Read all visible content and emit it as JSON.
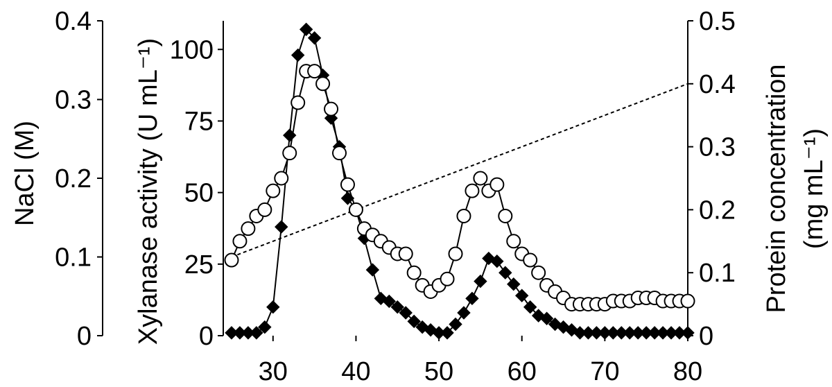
{
  "chart_data": {
    "type": "line",
    "xlabel": "",
    "xlim": [
      24,
      80
    ],
    "xticks": [
      30,
      40,
      50,
      60,
      70,
      80
    ],
    "axes": {
      "nacl": {
        "label": "NaCl (M)",
        "range": [
          0,
          0.4
        ],
        "ticks": [
          0,
          0.1,
          0.2,
          0.3,
          0.4
        ],
        "tick_labels": [
          "0",
          "0.1",
          "0.2",
          "0.3",
          "0.4"
        ]
      },
      "xylanase": {
        "label": "Xylanase activity (U mL⁻¹)",
        "range": [
          0,
          110
        ],
        "ticks": [
          0,
          25,
          50,
          75,
          100
        ],
        "tick_labels": [
          "0",
          "25",
          "50",
          "75",
          "100"
        ]
      },
      "protein": {
        "label_line1": "Protein concentration",
        "label_line2": "(mg mL⁻¹)",
        "range": [
          0,
          0.5
        ],
        "ticks": [
          0,
          0.1,
          0.2,
          0.3,
          0.4,
          0.5
        ],
        "tick_labels": [
          "0",
          "0.1",
          "0.2",
          "0.3",
          "0.4",
          "0.5"
        ]
      }
    },
    "series": [
      {
        "marker": "filled-diamond",
        "axis": "xylanase",
        "line": "solid",
        "x": [
          25,
          26,
          27,
          28,
          29,
          30,
          31,
          32,
          33,
          34,
          35,
          36,
          37,
          38,
          39,
          40,
          41,
          42,
          43,
          44,
          45,
          46,
          47,
          48,
          49,
          50,
          51,
          52,
          53,
          54,
          55,
          56,
          57,
          58,
          59,
          60,
          61,
          62,
          63,
          64,
          65,
          66,
          67,
          68,
          69,
          70,
          71,
          72,
          73,
          74,
          75,
          76,
          77,
          78,
          79,
          80
        ],
        "y": [
          1,
          1,
          1,
          1,
          3,
          10,
          38,
          70,
          98,
          107,
          104,
          91,
          76,
          66,
          48,
          44,
          34,
          23,
          13,
          12,
          10,
          8,
          5,
          3,
          2,
          1,
          1,
          4,
          8,
          13,
          19,
          27,
          26,
          22,
          18,
          14,
          10,
          7,
          6,
          4,
          3,
          2,
          1,
          1,
          1,
          1,
          1,
          1,
          1,
          1,
          1,
          1,
          1,
          1,
          1,
          1
        ]
      },
      {
        "marker": "open-circle",
        "axis": "protein",
        "line": "solid",
        "x": [
          25,
          26,
          27,
          28,
          29,
          30,
          31,
          32,
          33,
          34,
          35,
          36,
          37,
          38,
          39,
          40,
          41,
          42,
          43,
          44,
          45,
          46,
          47,
          48,
          49,
          50,
          51,
          52,
          53,
          54,
          55,
          56,
          57,
          58,
          59,
          60,
          61,
          62,
          63,
          64,
          65,
          66,
          67,
          68,
          69,
          70,
          71,
          72,
          73,
          74,
          75,
          76,
          77,
          78,
          79,
          80
        ],
        "y": [
          0.12,
          0.15,
          0.17,
          0.19,
          0.2,
          0.23,
          0.25,
          0.29,
          0.37,
          0.42,
          0.42,
          0.4,
          0.36,
          0.29,
          0.24,
          0.2,
          0.17,
          0.16,
          0.15,
          0.14,
          0.13,
          0.13,
          0.1,
          0.08,
          0.07,
          0.08,
          0.09,
          0.13,
          0.19,
          0.23,
          0.25,
          0.23,
          0.24,
          0.19,
          0.15,
          0.13,
          0.12,
          0.1,
          0.08,
          0.07,
          0.06,
          0.05,
          0.05,
          0.05,
          0.05,
          0.05,
          0.055,
          0.055,
          0.055,
          0.06,
          0.06,
          0.06,
          0.055,
          0.055,
          0.055,
          0.055
        ]
      },
      {
        "marker": "none",
        "axis": "nacl",
        "line": "dashed",
        "x": [
          25,
          80
        ],
        "y": [
          0.1,
          0.32
        ]
      }
    ]
  }
}
